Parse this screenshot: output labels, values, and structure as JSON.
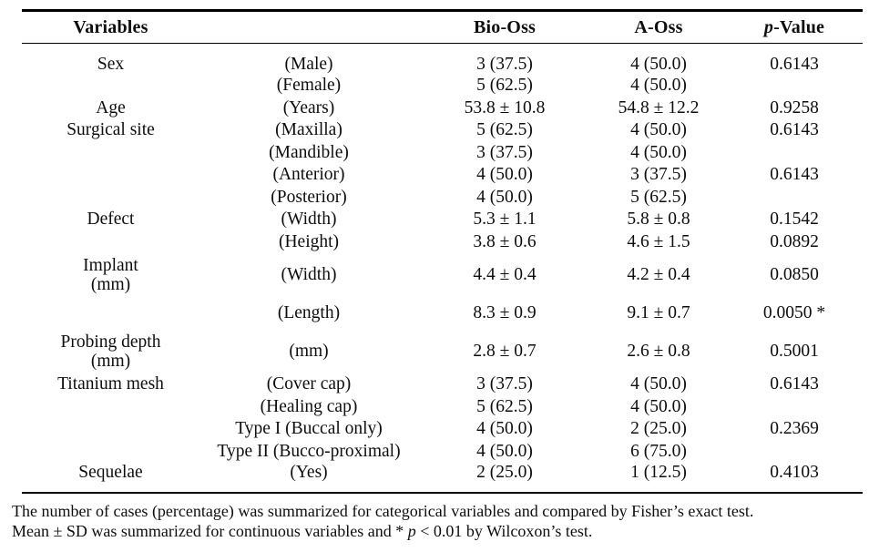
{
  "page": {
    "background_color": "#ffffff",
    "text_color": "#0e0e0e",
    "rule_color": "#000000"
  },
  "table": {
    "headers": {
      "variables": "Variables",
      "category": "",
      "bio_oss": "Bio-Oss",
      "a_oss": "A-Oss",
      "p_italic": "p",
      "p_rest": "-Value"
    },
    "rows": [
      {
        "v1": "Sex",
        "v2": "",
        "cat": "(Male)",
        "bio": "3 (37.5)",
        "aoss": "4 (50.0)",
        "p": "0.6143",
        "h": "n"
      },
      {
        "v1": "",
        "v2": "",
        "cat": "(Female)",
        "bio": "5 (62.5)",
        "aoss": "4 (50.0)",
        "p": "",
        "h": "n"
      },
      {
        "v1": "Age",
        "v2": "",
        "cat": "(Years)",
        "bio": "53.8 ± 10.8",
        "aoss": "54.8 ± 12.2",
        "p": "0.9258",
        "h": "n"
      },
      {
        "v1": "Surgical site",
        "v2": "",
        "cat": "(Maxilla)",
        "bio": "5 (62.5)",
        "aoss": "4 (50.0)",
        "p": "0.6143",
        "h": "n"
      },
      {
        "v1": "",
        "v2": "",
        "cat": "(Mandible)",
        "bio": "3 (37.5)",
        "aoss": "4 (50.0)",
        "p": "",
        "h": "n"
      },
      {
        "v1": "",
        "v2": "",
        "cat": "(Anterior)",
        "bio": "4 (50.0)",
        "aoss": "3 (37.5)",
        "p": "0.6143",
        "h": "n"
      },
      {
        "v1": "",
        "v2": "",
        "cat": "(Posterior)",
        "bio": "4 (50.0)",
        "aoss": "5 (62.5)",
        "p": "",
        "h": "n"
      },
      {
        "v1": "Defect",
        "v2": "",
        "cat": "(Width)",
        "bio": "5.3 ± 1.1",
        "aoss": "5.8 ± 0.8",
        "p": "0.1542",
        "h": "n"
      },
      {
        "v1": "",
        "v2": "",
        "cat": "(Height)",
        "bio": "3.8 ± 0.6",
        "aoss": "4.6 ± 1.5",
        "p": "0.0892",
        "h": "n"
      },
      {
        "v1": "Implant",
        "v2": "(mm)",
        "cat": "(Width)",
        "bio": "4.4 ± 0.4",
        "aoss": "4.2 ± 0.4",
        "p": "0.0850",
        "h": "t"
      },
      {
        "v1": "",
        "v2": "",
        "cat": "(Length)",
        "bio": "8.3 ± 0.9",
        "aoss": "9.1 ± 0.7",
        "p": "0.0050 *",
        "h": "m"
      },
      {
        "v1": "Probing depth",
        "v2": "(mm)",
        "cat": "(mm)",
        "bio": "2.8 ± 0.7",
        "aoss": "2.6 ± 0.8",
        "p": "0.5001",
        "h": "t"
      },
      {
        "v1": "Titanium mesh",
        "v2": "",
        "cat": "(Cover cap)",
        "bio": "3 (37.5)",
        "aoss": "4 (50.0)",
        "p": "0.6143",
        "h": "n"
      },
      {
        "v1": "",
        "v2": "",
        "cat": "(Healing cap)",
        "bio": "5 (62.5)",
        "aoss": "4 (50.0)",
        "p": "",
        "h": "n"
      },
      {
        "v1": "",
        "v2": "",
        "cat": "Type I (Buccal only)",
        "bio": "4 (50.0)",
        "aoss": "2 (25.0)",
        "p": "0.2369",
        "h": "n"
      },
      {
        "v1": "",
        "v2": "",
        "cat": "Type II (Bucco-proximal)",
        "bio": "4 (50.0)",
        "aoss": "6 (75.0)",
        "p": "",
        "h": "n"
      },
      {
        "v1": "Sequelae",
        "v2": "",
        "cat": "(Yes)",
        "bio": "2 (25.0)",
        "aoss": "1 (12.5)",
        "p": "0.4103",
        "h": "n"
      }
    ],
    "footnote": {
      "line1": "The number of cases (percentage) was summarized for categorical variables and compared by Fisher’s exact test.",
      "line2_prefix": "Mean ± SD was summarized for continuous variables and * ",
      "line2_italic": "p",
      "line2_suffix": " < 0.01 by Wilcoxon’s test."
    }
  }
}
